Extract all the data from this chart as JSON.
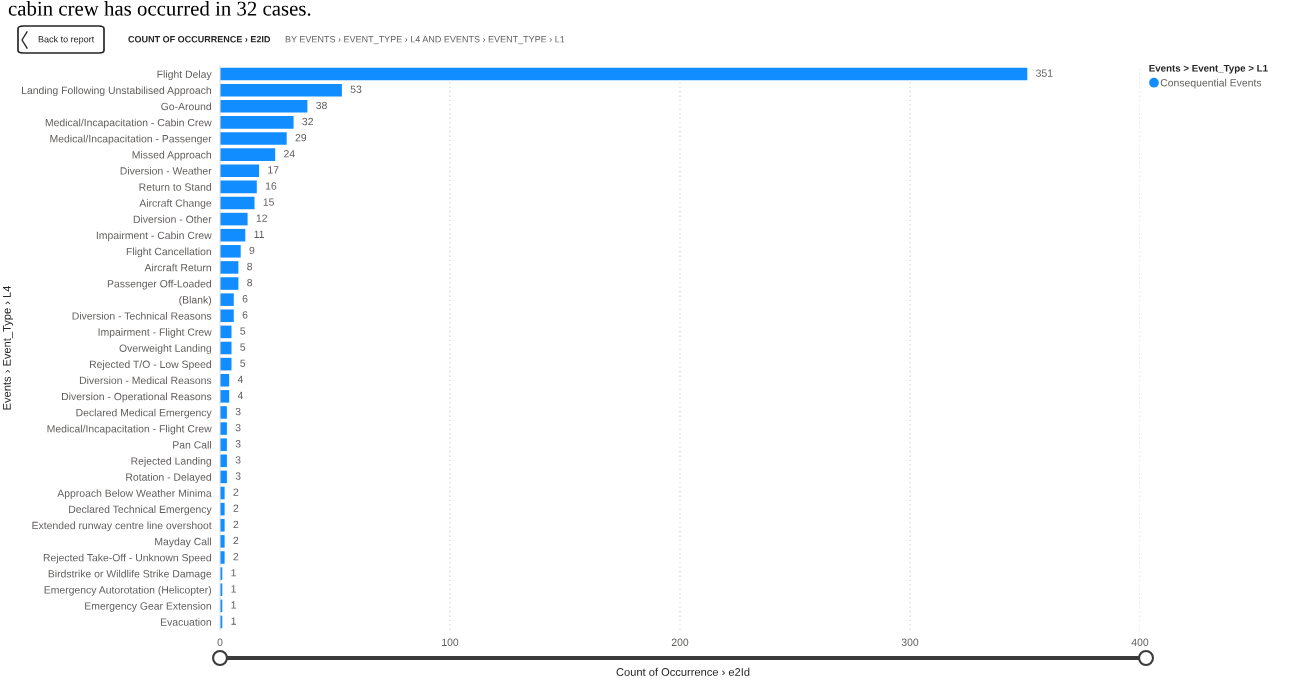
{
  "chart_data": {
    "type": "bar",
    "orientation": "horizontal",
    "title": "COUNT OF OCCURRENCE › E2ID",
    "subtitle": "BY EVENTS › EVENT_TYPE › L4 AND EVENTS › EVENT_TYPE › L1",
    "xlabel": "Count of Occurrence › e2Id",
    "ylabel": "Events › Event_Type › L4",
    "legend_title": "Events > Event_Type > L1",
    "categories": [
      "Flight Delay",
      "Landing Following Unstabilised Approach",
      "Go-Around",
      "Medical/Incapacitation - Cabin Crew",
      "Medical/Incapacitation - Passenger",
      "Missed Approach",
      "Diversion - Weather",
      "Return to Stand",
      "Aircraft Change",
      "Diversion - Other",
      "Impairment - Cabin Crew",
      "Flight Cancellation",
      "Aircraft Return",
      "Passenger Off-Loaded",
      "(Blank)",
      "Diversion - Technical Reasons",
      "Impairment - Flight Crew",
      "Overweight Landing",
      "Rejected T/O - Low Speed",
      "Diversion - Medical Reasons",
      "Diversion - Operational Reasons",
      "Declared Medical Emergency",
      "Medical/Incapacitation - Flight Crew",
      "Pan Call",
      "Rejected Landing",
      "Rotation - Delayed",
      "Approach Below Weather Minima",
      "Declared Technical Emergency",
      "Extended runway centre line overshoot",
      "Mayday Call",
      "Rejected Take-Off - Unknown Speed",
      "Birdstrike or Wildlife Strike Damage",
      "Emergency Autorotation (Helicopter)",
      "Emergency Gear Extension",
      "Evacuation"
    ],
    "series": [
      {
        "name": "Consequential Events",
        "color": "#118dff",
        "values": [
          351,
          53,
          38,
          32,
          29,
          24,
          17,
          16,
          15,
          12,
          11,
          9,
          8,
          8,
          6,
          6,
          5,
          5,
          5,
          4,
          4,
          3,
          3,
          3,
          3,
          3,
          2,
          2,
          2,
          2,
          2,
          1,
          1,
          1,
          1
        ]
      }
    ],
    "xlim": [
      0,
      400
    ],
    "xticks": [
      0,
      100,
      200,
      300,
      400
    ],
    "grid": "x",
    "legend": "top right",
    "data_labels": true,
    "annotations": [
      "cabin crew has occurred in 32 cases.",
      "Back to report"
    ]
  }
}
